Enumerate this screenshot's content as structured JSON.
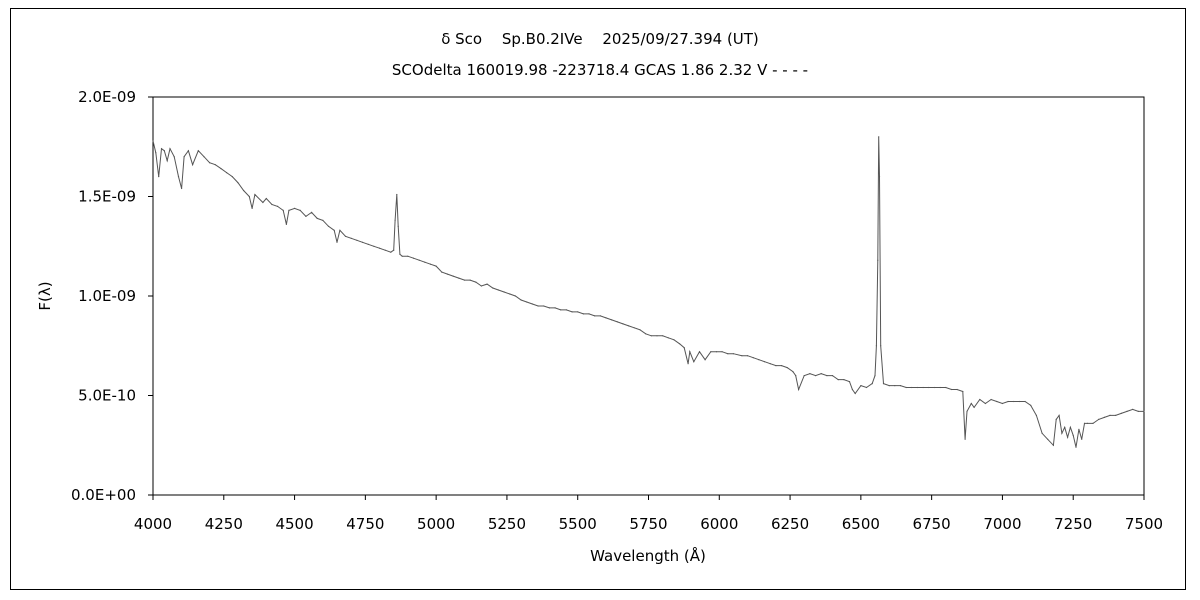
{
  "chart_data": {
    "type": "line",
    "title": "δ Sco　 Sp.B0.2IVe　 2025/09/27.394 (UT)",
    "subtitle": "SCOdelta 160019.98 -223718.4 GCAS 1.86 2.32 V - - - -",
    "xlabel": "Wavelength (Å)",
    "ylabel": "F(λ)",
    "xlim": [
      4000,
      7500
    ],
    "ylim": [
      0,
      2e-09
    ],
    "grid": false,
    "legend": "none",
    "x_ticks": [
      4000,
      4250,
      4500,
      4750,
      5000,
      5250,
      5500,
      5750,
      6000,
      6250,
      6500,
      6750,
      7000,
      7250,
      7500
    ],
    "x_tick_labels": [
      "4000",
      "4250",
      "4500",
      "4750",
      "5000",
      "5250",
      "5500",
      "5750",
      "6000",
      "6250",
      "6500",
      "6750",
      "7000",
      "7250",
      "7500"
    ],
    "y_ticks": [
      0,
      5e-10,
      1e-09,
      1.5e-09,
      2e-09
    ],
    "y_tick_labels": [
      "0.0E+00",
      "5.0E-10",
      "1.0E-09",
      "1.5E-09",
      "2.0E-09"
    ],
    "series": [
      {
        "color": "#555555",
        "x": [
          4000,
          4010,
          4020,
          4030,
          4040,
          4050,
          4060,
          4075,
          4090,
          4101,
          4110,
          4125,
          4140,
          4160,
          4180,
          4200,
          4220,
          4240,
          4260,
          4280,
          4300,
          4320,
          4340,
          4350,
          4360,
          4388,
          4400,
          4420,
          4440,
          4460,
          4471,
          4480,
          4500,
          4520,
          4540,
          4560,
          4580,
          4600,
          4620,
          4640,
          4650,
          4660,
          4680,
          4700,
          4720,
          4740,
          4760,
          4780,
          4800,
          4820,
          4840,
          4850,
          4855,
          4861,
          4866,
          4872,
          4880,
          4900,
          4920,
          4940,
          4960,
          4980,
          5000,
          5020,
          5040,
          5060,
          5080,
          5100,
          5120,
          5140,
          5160,
          5180,
          5200,
          5220,
          5240,
          5260,
          5280,
          5300,
          5320,
          5340,
          5360,
          5380,
          5400,
          5420,
          5440,
          5460,
          5480,
          5500,
          5520,
          5540,
          5560,
          5580,
          5600,
          5620,
          5640,
          5660,
          5680,
          5700,
          5720,
          5740,
          5760,
          5780,
          5800,
          5820,
          5840,
          5860,
          5876,
          5890,
          5896,
          5910,
          5930,
          5950,
          5970,
          5990,
          6010,
          6030,
          6050,
          6080,
          6100,
          6120,
          6140,
          6160,
          6180,
          6200,
          6220,
          6240,
          6260,
          6270,
          6280,
          6300,
          6320,
          6340,
          6360,
          6380,
          6400,
          6420,
          6440,
          6460,
          6470,
          6480,
          6500,
          6520,
          6540,
          6550,
          6555,
          6560,
          6563,
          6566,
          6570,
          6580,
          6600,
          6620,
          6640,
          6660,
          6680,
          6700,
          6720,
          6740,
          6760,
          6780,
          6800,
          6820,
          6840,
          6860,
          6868,
          6875,
          6890,
          6900,
          6920,
          6940,
          6960,
          6980,
          7000,
          7020,
          7040,
          7060,
          7080,
          7100,
          7120,
          7140,
          7160,
          7180,
          7190,
          7200,
          7210,
          7220,
          7230,
          7240,
          7250,
          7260,
          7270,
          7280,
          7290,
          7300,
          7320,
          7340,
          7360,
          7380,
          7400,
          7420,
          7440,
          7460,
          7480,
          7500
        ],
        "y": [
          1.78e-09,
          1.72e-09,
          1.6e-09,
          1.74e-09,
          1.73e-09,
          1.68e-09,
          1.74e-09,
          1.7e-09,
          1.6e-09,
          1.54e-09,
          1.7e-09,
          1.73e-09,
          1.66e-09,
          1.73e-09,
          1.7e-09,
          1.67e-09,
          1.66e-09,
          1.64e-09,
          1.62e-09,
          1.6e-09,
          1.57e-09,
          1.53e-09,
          1.5e-09,
          1.44e-09,
          1.51e-09,
          1.47e-09,
          1.49e-09,
          1.46e-09,
          1.45e-09,
          1.43e-09,
          1.36e-09,
          1.43e-09,
          1.44e-09,
          1.43e-09,
          1.4e-09,
          1.42e-09,
          1.39e-09,
          1.38e-09,
          1.35e-09,
          1.33e-09,
          1.27e-09,
          1.33e-09,
          1.3e-09,
          1.29e-09,
          1.28e-09,
          1.27e-09,
          1.26e-09,
          1.25e-09,
          1.24e-09,
          1.23e-09,
          1.22e-09,
          1.23e-09,
          1.38e-09,
          1.51e-09,
          1.35e-09,
          1.21e-09,
          1.2e-09,
          1.2e-09,
          1.19e-09,
          1.18e-09,
          1.17e-09,
          1.16e-09,
          1.15e-09,
          1.12e-09,
          1.11e-09,
          1.1e-09,
          1.09e-09,
          1.08e-09,
          1.08e-09,
          1.07e-09,
          1.05e-09,
          1.06e-09,
          1.04e-09,
          1.03e-09,
          1.02e-09,
          1.01e-09,
          1e-09,
          9.8e-10,
          9.7e-10,
          9.6e-10,
          9.5e-10,
          9.5e-10,
          9.4e-10,
          9.4e-10,
          9.3e-10,
          9.3e-10,
          9.2e-10,
          9.2e-10,
          9.1e-10,
          9.1e-10,
          9e-10,
          9e-10,
          8.9e-10,
          8.8e-10,
          8.7e-10,
          8.6e-10,
          8.5e-10,
          8.4e-10,
          8.3e-10,
          8.1e-10,
          8e-10,
          8e-10,
          8e-10,
          7.9e-10,
          7.8e-10,
          7.6e-10,
          7.4e-10,
          6.6e-10,
          7.2e-10,
          6.7e-10,
          7.2e-10,
          6.8e-10,
          7.2e-10,
          7.2e-10,
          7.2e-10,
          7.1e-10,
          7.1e-10,
          7e-10,
          7e-10,
          6.9e-10,
          6.8e-10,
          6.7e-10,
          6.6e-10,
          6.5e-10,
          6.5e-10,
          6.4e-10,
          6.2e-10,
          6e-10,
          5.3e-10,
          6e-10,
          6.1e-10,
          6e-10,
          6.1e-10,
          6e-10,
          6e-10,
          5.8e-10,
          5.8e-10,
          5.7e-10,
          5.3e-10,
          5.1e-10,
          5.5e-10,
          5.4e-10,
          5.6e-10,
          6e-10,
          7.5e-10,
          1.18e-09,
          1.8e-09,
          1.6e-09,
          7.5e-10,
          5.6e-10,
          5.5e-10,
          5.5e-10,
          5.5e-10,
          5.4e-10,
          5.4e-10,
          5.4e-10,
          5.4e-10,
          5.4e-10,
          5.4e-10,
          5.4e-10,
          5.4e-10,
          5.3e-10,
          5.3e-10,
          5.2e-10,
          2.8e-10,
          4.2e-10,
          4.6e-10,
          4.4e-10,
          4.8e-10,
          4.6e-10,
          4.8e-10,
          4.7e-10,
          4.6e-10,
          4.7e-10,
          4.7e-10,
          4.7e-10,
          4.7e-10,
          4.5e-10,
          4e-10,
          3.1e-10,
          2.8e-10,
          2.5e-10,
          3.8e-10,
          4e-10,
          3.1e-10,
          3.4e-10,
          2.9e-10,
          3.4e-10,
          3e-10,
          2.4e-10,
          3.3e-10,
          2.8e-10,
          3.6e-10,
          3.6e-10,
          3.6e-10,
          3.8e-10,
          3.9e-10,
          4e-10,
          4e-10,
          4.1e-10,
          4.2e-10,
          4.3e-10,
          4.2e-10,
          4.2e-10
        ]
      }
    ]
  }
}
